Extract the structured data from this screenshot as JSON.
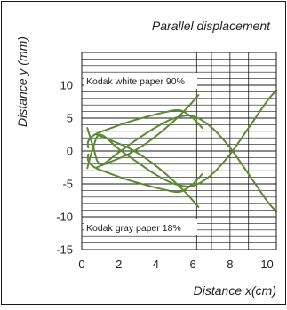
{
  "chart_data": {
    "type": "line",
    "title": "Parallel displacement",
    "xlabel": "Distance x(cm)",
    "ylabel": "Distance y (mm)",
    "xlim": [
      0,
      10.5
    ],
    "ylim": [
      -15,
      15
    ],
    "xticks": [
      "0",
      "2",
      "4",
      "6",
      "8",
      "10"
    ],
    "yticks": [
      "-15",
      "-10",
      "-5",
      "0",
      "5",
      "10"
    ],
    "grid": "horizontal lines every 1 mm; vertical lines every 1 cm for x > 6.2 only",
    "legend": "none",
    "annotations": [
      {
        "text": "Kodak white paper 90%",
        "region": "upper-left"
      },
      {
        "text": "Kodak gray paper 18%",
        "region": "lower-left"
      }
    ],
    "colors": {
      "curve": "#5a8a32",
      "frame": "#1a1a1a",
      "grid": "#1a1a1a"
    },
    "series": [
      {
        "x": [
          0.3,
          0.6,
          1.0,
          2.0,
          3.0,
          4.0,
          5.0,
          6.0,
          7.0,
          8.0,
          9.0,
          10.0,
          10.5
        ],
        "y": [
          3.5,
          0.8,
          -2.0,
          -0.2,
          1.8,
          3.6,
          5.0,
          5.3,
          3.6,
          0.5,
          -3.5,
          -7.6,
          -9.2
        ]
      },
      {
        "x": [
          0.3,
          0.6,
          1.0,
          2.0,
          3.0,
          4.0,
          5.0,
          6.0,
          7.0,
          8.0,
          9.0,
          10.0,
          10.5
        ],
        "y": [
          -2.6,
          0.4,
          2.5,
          0.3,
          -1.7,
          -3.6,
          -5.0,
          -5.3,
          -3.6,
          -0.5,
          3.5,
          7.6,
          9.2
        ]
      },
      {
        "x": [
          0.35,
          0.35,
          0.7,
          1.5,
          2.5,
          3.5,
          4.5,
          5.3,
          6.0,
          6.5
        ],
        "y": [
          0.5,
          1.5,
          2.5,
          3.4,
          4.4,
          5.2,
          5.9,
          6.2,
          5.0,
          3.5
        ]
      },
      {
        "x": [
          0.35,
          0.35,
          0.7,
          1.5,
          2.5,
          3.5,
          4.5,
          5.3,
          6.0,
          6.5
        ],
        "y": [
          -0.5,
          -1.5,
          -2.5,
          -3.4,
          -4.4,
          -5.2,
          -5.9,
          -6.2,
          -5.0,
          -3.5
        ]
      },
      {
        "x": [
          0.8,
          1.5,
          2.5,
          3.5,
          4.5,
          5.5,
          6.3
        ],
        "y": [
          -2.5,
          -1.7,
          -0.5,
          1.2,
          3.4,
          6.0,
          8.5
        ]
      },
      {
        "x": [
          0.8,
          1.5,
          2.5,
          3.5,
          4.5,
          5.5,
          6.3
        ],
        "y": [
          2.5,
          1.7,
          0.5,
          -1.2,
          -3.4,
          -6.0,
          -8.5
        ]
      }
    ]
  }
}
